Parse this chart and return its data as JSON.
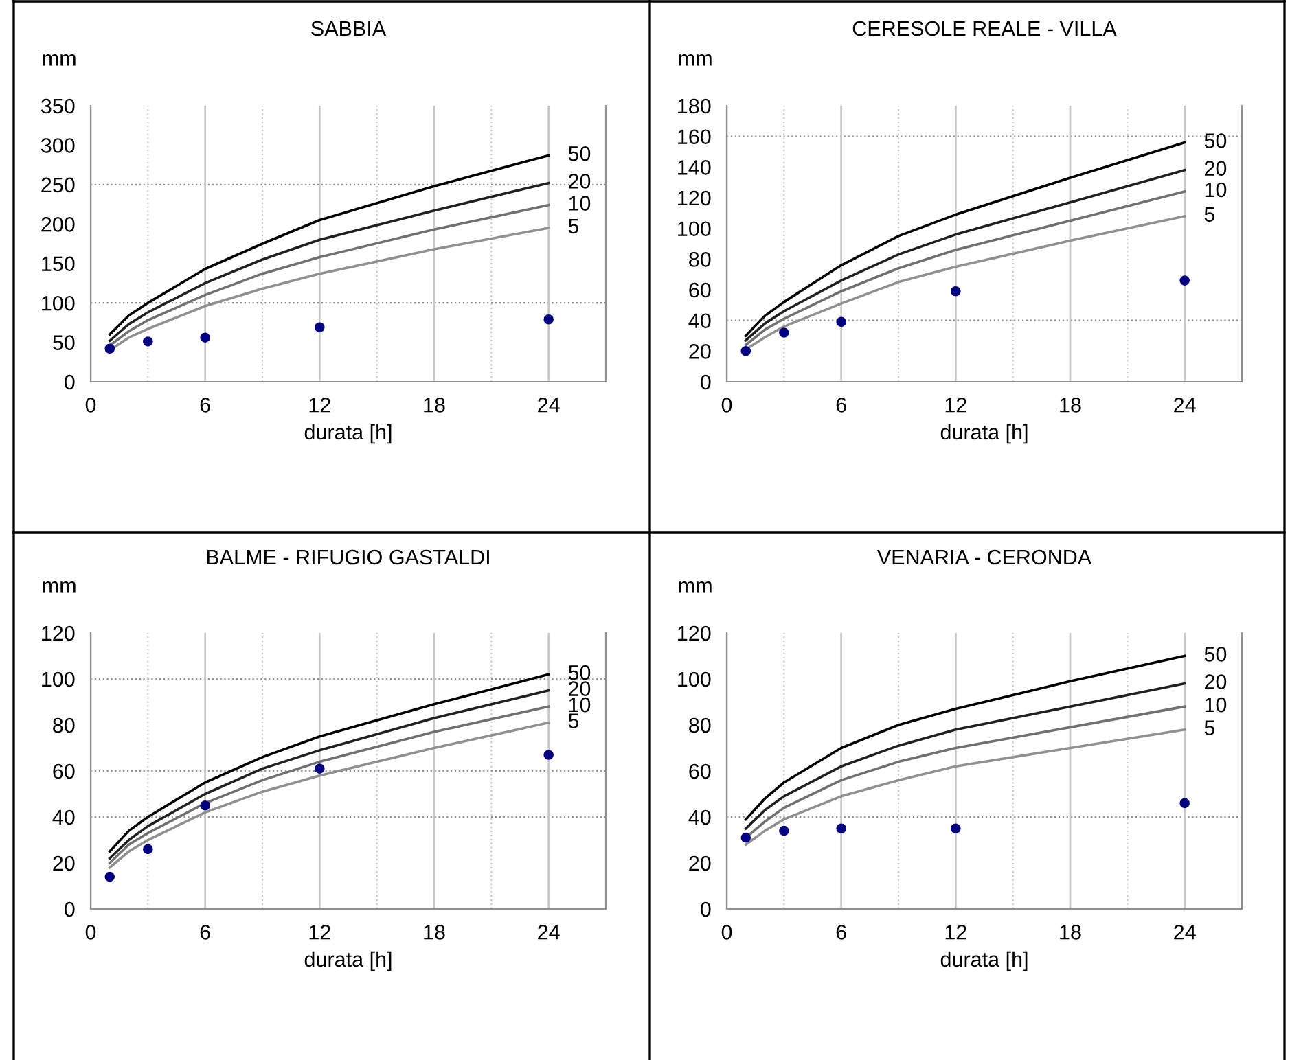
{
  "chart_data": [
    {
      "type": "line",
      "title": "SABBIA",
      "ylabel": "mm",
      "xlabel": "durata [h]",
      "xlim": [
        0,
        27
      ],
      "xticks": [
        0,
        6,
        12,
        18,
        24
      ],
      "ylim": [
        0,
        350
      ],
      "yticks": [
        0,
        50,
        100,
        150,
        200,
        250,
        300,
        350
      ],
      "grid": "x",
      "legend": false,
      "ref_lines": [
        {
          "axis": "x",
          "value": 3,
          "color": "#c8c8c8",
          "line_style": "dotted"
        },
        {
          "axis": "x",
          "value": 9,
          "color": "#c8c8c8",
          "line_style": "dotted"
        },
        {
          "axis": "x",
          "value": 15,
          "color": "#c8c8c8",
          "line_style": "dotted"
        },
        {
          "axis": "x",
          "value": 21,
          "color": "#c8c8c8",
          "line_style": "dotted"
        },
        {
          "axis": "y",
          "value": 250,
          "color": "#909090",
          "line_style": "dotted"
        },
        {
          "axis": "y",
          "value": 100,
          "color": "#909090",
          "line_style": "dotted"
        }
      ],
      "series": [
        {
          "name": "50",
          "color": "#000000",
          "marker": "none",
          "x": [
            1,
            2,
            3,
            6,
            9,
            12,
            18,
            24
          ],
          "values": [
            60,
            84,
            100,
            143,
            175,
            205,
            248,
            287
          ]
        },
        {
          "name": "20",
          "color": "#202020",
          "marker": "none",
          "x": [
            1,
            2,
            3,
            6,
            9,
            12,
            18,
            24
          ],
          "values": [
            52,
            73,
            88,
            125,
            155,
            180,
            217,
            252
          ]
        },
        {
          "name": "10",
          "color": "#707070",
          "marker": "none",
          "x": [
            1,
            2,
            3,
            6,
            9,
            12,
            18,
            24
          ],
          "values": [
            46,
            64,
            78,
            110,
            137,
            158,
            193,
            224
          ]
        },
        {
          "name": "5",
          "color": "#909090",
          "marker": "none",
          "x": [
            1,
            2,
            3,
            6,
            9,
            12,
            18,
            24
          ],
          "values": [
            40,
            56,
            67,
            96,
            118,
            137,
            168,
            195
          ]
        },
        {
          "type": "scatter",
          "color": "#000080",
          "marker": "circle",
          "x": [
            1,
            3,
            6,
            12,
            24
          ],
          "values": [
            42,
            51,
            56,
            69,
            79
          ]
        }
      ]
    },
    {
      "type": "line",
      "title": "CERESOLE REALE - VILLA",
      "ylabel": "mm",
      "xlabel": "durata [h]",
      "xlim": [
        0,
        27
      ],
      "xticks": [
        0,
        6,
        12,
        18,
        24
      ],
      "ylim": [
        0,
        180
      ],
      "yticks": [
        0,
        20,
        40,
        60,
        80,
        100,
        120,
        140,
        160,
        180
      ],
      "grid": "x",
      "legend": false,
      "ref_lines": [
        {
          "axis": "x",
          "value": 3,
          "color": "#c8c8c8",
          "line_style": "dotted"
        },
        {
          "axis": "x",
          "value": 9,
          "color": "#c8c8c8",
          "line_style": "dotted"
        },
        {
          "axis": "x",
          "value": 15,
          "color": "#c8c8c8",
          "line_style": "dotted"
        },
        {
          "axis": "x",
          "value": 21,
          "color": "#c8c8c8",
          "line_style": "dotted"
        },
        {
          "axis": "y",
          "value": 160,
          "color": "#909090",
          "line_style": "dotted"
        },
        {
          "axis": "y",
          "value": 40,
          "color": "#909090",
          "line_style": "dotted"
        }
      ],
      "series": [
        {
          "name": "50",
          "color": "#000000",
          "marker": "none",
          "x": [
            1,
            2,
            3,
            6,
            9,
            12,
            18,
            24
          ],
          "values": [
            30,
            43,
            52,
            76,
            95,
            109,
            133,
            156
          ]
        },
        {
          "name": "20",
          "color": "#202020",
          "marker": "none",
          "x": [
            1,
            2,
            3,
            6,
            9,
            12,
            18,
            24
          ],
          "values": [
            27,
            38,
            46,
            66,
            83,
            96,
            117,
            138
          ]
        },
        {
          "name": "10",
          "color": "#707070",
          "marker": "none",
          "x": [
            1,
            2,
            3,
            6,
            9,
            12,
            18,
            24
          ],
          "values": [
            24,
            34,
            41,
            59,
            74,
            86,
            105,
            124
          ]
        },
        {
          "name": "5",
          "color": "#909090",
          "marker": "none",
          "x": [
            1,
            2,
            3,
            6,
            9,
            12,
            18,
            24
          ],
          "values": [
            21,
            29,
            36,
            51,
            65,
            75,
            92,
            108
          ]
        },
        {
          "type": "scatter",
          "color": "#000080",
          "marker": "circle",
          "x": [
            1,
            3,
            6,
            12,
            24
          ],
          "values": [
            20,
            32,
            39,
            59,
            66
          ]
        }
      ]
    },
    {
      "type": "line",
      "title": "BALME - RIFUGIO GASTALDI",
      "ylabel": "mm",
      "xlabel": "durata [h]",
      "xlim": [
        0,
        27
      ],
      "xticks": [
        0,
        6,
        12,
        18,
        24
      ],
      "ylim": [
        0,
        120
      ],
      "yticks": [
        0,
        20,
        40,
        60,
        80,
        100,
        120
      ],
      "grid": "x",
      "legend": false,
      "ref_lines": [
        {
          "axis": "x",
          "value": 3,
          "color": "#c8c8c8",
          "line_style": "dotted"
        },
        {
          "axis": "x",
          "value": 9,
          "color": "#c8c8c8",
          "line_style": "dotted"
        },
        {
          "axis": "x",
          "value": 15,
          "color": "#c8c8c8",
          "line_style": "dotted"
        },
        {
          "axis": "x",
          "value": 21,
          "color": "#c8c8c8",
          "line_style": "dotted"
        },
        {
          "axis": "y",
          "value": 100,
          "color": "#909090",
          "line_style": "dotted"
        },
        {
          "axis": "y",
          "value": 60,
          "color": "#909090",
          "line_style": "dotted"
        },
        {
          "axis": "y",
          "value": 40,
          "color": "#909090",
          "line_style": "dotted"
        }
      ],
      "series": [
        {
          "name": "50",
          "color": "#000000",
          "marker": "none",
          "x": [
            1,
            2,
            3,
            6,
            9,
            12,
            18,
            24
          ],
          "values": [
            25,
            34,
            40,
            55,
            66,
            75,
            89,
            102
          ]
        },
        {
          "name": "20",
          "color": "#202020",
          "marker": "none",
          "x": [
            1,
            2,
            3,
            6,
            9,
            12,
            18,
            24
          ],
          "values": [
            22,
            30,
            36,
            50,
            61,
            69,
            83,
            95
          ]
        },
        {
          "name": "10",
          "color": "#707070",
          "marker": "none",
          "x": [
            1,
            2,
            3,
            6,
            9,
            12,
            18,
            24
          ],
          "values": [
            20,
            28,
            33,
            46,
            56,
            64,
            77,
            88
          ]
        },
        {
          "name": "5",
          "color": "#909090",
          "marker": "none",
          "x": [
            1,
            2,
            3,
            6,
            9,
            12,
            18,
            24
          ],
          "values": [
            18,
            25,
            30,
            42,
            51,
            58,
            70,
            81
          ]
        },
        {
          "type": "scatter",
          "color": "#000080",
          "marker": "circle",
          "x": [
            1,
            3,
            6,
            12,
            24
          ],
          "values": [
            14,
            26,
            45,
            61,
            67
          ]
        }
      ]
    },
    {
      "type": "line",
      "title": "VENARIA - CERONDA",
      "ylabel": "mm",
      "xlabel": "durata [h]",
      "xlim": [
        0,
        27
      ],
      "xticks": [
        0,
        6,
        12,
        18,
        24
      ],
      "ylim": [
        0,
        120
      ],
      "yticks": [
        0,
        20,
        40,
        60,
        80,
        100,
        120
      ],
      "grid": "x",
      "legend": false,
      "ref_lines": [
        {
          "axis": "x",
          "value": 3,
          "color": "#c8c8c8",
          "line_style": "dotted"
        },
        {
          "axis": "x",
          "value": 9,
          "color": "#c8c8c8",
          "line_style": "dotted"
        },
        {
          "axis": "x",
          "value": 15,
          "color": "#c8c8c8",
          "line_style": "dotted"
        },
        {
          "axis": "x",
          "value": 21,
          "color": "#c8c8c8",
          "line_style": "dotted"
        },
        {
          "axis": "y",
          "value": 40,
          "color": "#909090",
          "line_style": "dotted"
        }
      ],
      "series": [
        {
          "name": "50",
          "color": "#000000",
          "marker": "none",
          "x": [
            1,
            2,
            3,
            6,
            9,
            12,
            18,
            24
          ],
          "values": [
            39,
            48,
            55,
            70,
            80,
            87,
            99,
            110
          ]
        },
        {
          "name": "20",
          "color": "#202020",
          "marker": "none",
          "x": [
            1,
            2,
            3,
            6,
            9,
            12,
            18,
            24
          ],
          "values": [
            35,
            43,
            49,
            62,
            71,
            78,
            88,
            98
          ]
        },
        {
          "name": "10",
          "color": "#707070",
          "marker": "none",
          "x": [
            1,
            2,
            3,
            6,
            9,
            12,
            18,
            24
          ],
          "values": [
            31,
            38,
            44,
            56,
            64,
            70,
            79,
            88
          ]
        },
        {
          "name": "5",
          "color": "#909090",
          "marker": "none",
          "x": [
            1,
            2,
            3,
            6,
            9,
            12,
            18,
            24
          ],
          "values": [
            28,
            34,
            39,
            49,
            56,
            62,
            70,
            78
          ]
        },
        {
          "type": "scatter",
          "color": "#000080",
          "marker": "circle",
          "x": [
            1,
            3,
            6,
            12,
            24
          ],
          "values": [
            31,
            34,
            35,
            35,
            46
          ]
        }
      ]
    }
  ]
}
